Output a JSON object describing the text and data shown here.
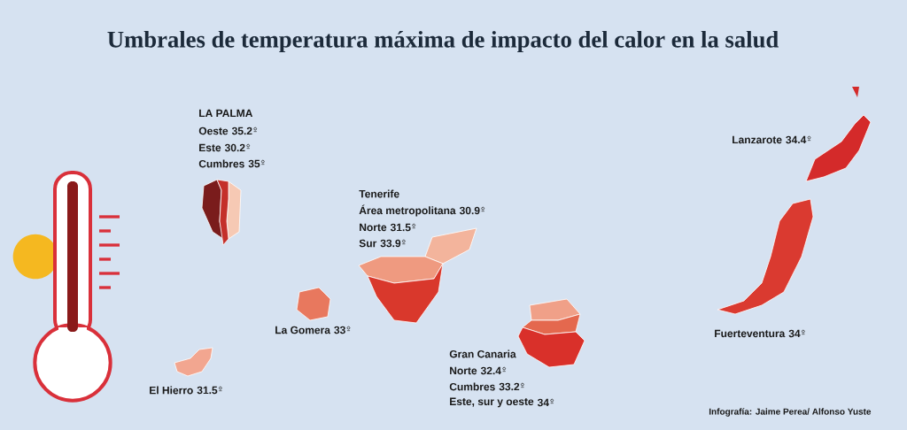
{
  "chart_data": {
    "type": "other",
    "title": "Umbrales de temperatura máxima de impacto del calor en la salud",
    "categories": [
      "Oeste",
      "Este",
      "Cumbres",
      "Área metropolitana",
      "Norte",
      "Sur",
      "Norte",
      "Cumbres",
      "Este, sur y oeste",
      "La Gomera",
      "El Hierro",
      "Lanzarote",
      "Fuerteventura"
    ],
    "values": [
      35.2,
      30.2,
      35,
      30.9,
      31.5,
      33.9,
      32.4,
      33.2,
      34,
      33,
      31.5,
      34.4,
      34
    ],
    "data_labels": true,
    "colors": [
      "#7a1c1c",
      "#f6c9b4",
      "#c4302a",
      "#f3b49c",
      "#ef9a80",
      "#d9382c",
      "#f0a088",
      "#e4684e",
      "#d9302a",
      "#e8785e",
      "#f2a690",
      "#d42a2a",
      "#da3a30"
    ],
    "annotations": [
      "LA PALMA",
      "Tenerife",
      "Gran Canaria",
      "Infografía: Jaime Perea/ Alfonso Yuste"
    ]
  }
}
